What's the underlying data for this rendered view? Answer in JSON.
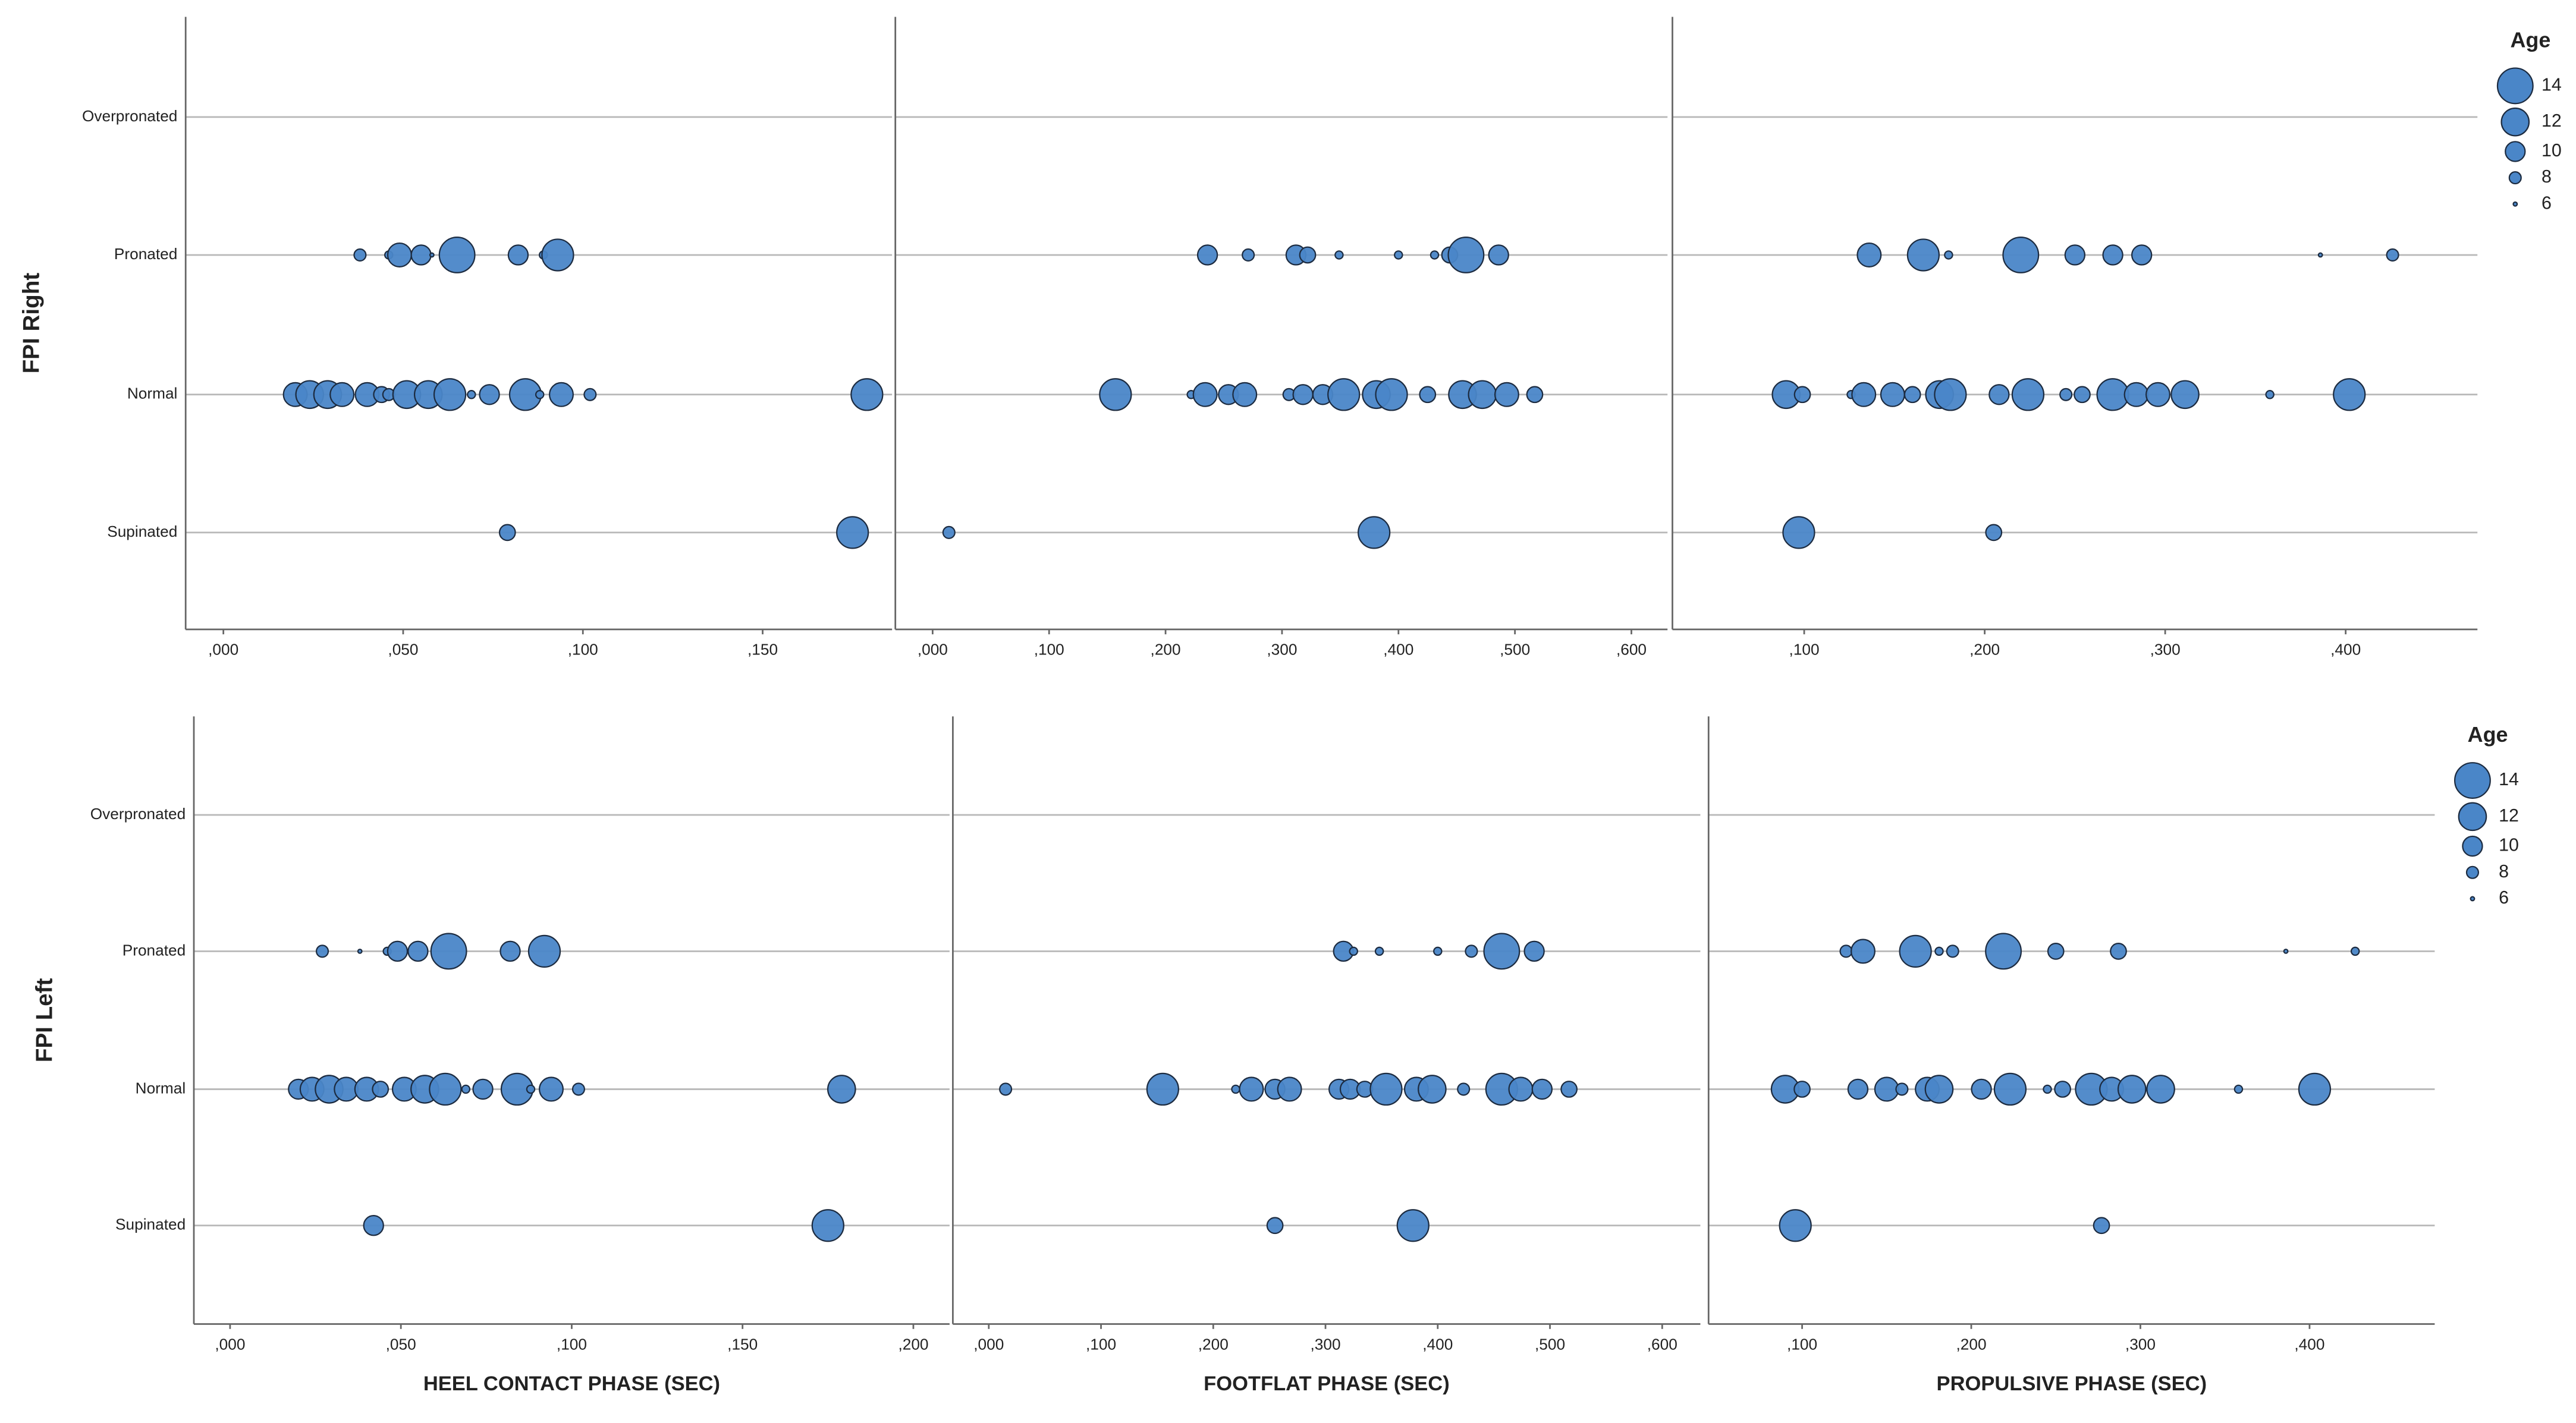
{
  "chart_data": [
    {
      "type": "bubble",
      "ylabel": "FPI Right",
      "categories": [
        "Overpronated",
        "Pronated",
        "Normal",
        "Supinated"
      ],
      "color": "#4a86c8",
      "size_legend": {
        "title": "Age",
        "values": [
          14,
          12,
          10,
          8,
          6
        ]
      },
      "panels": [
        {
          "xlim": [
            -0.0105,
            0.186
          ],
          "xticks": [
            {
              "value": 0,
              "label": ",000"
            },
            {
              "value": 0.05,
              "label": ",050"
            },
            {
              "value": 0.1,
              "label": ",100"
            },
            {
              "value": 0.15,
              "label": ",150"
            }
          ],
          "x": [
            [],
            [
              0.038,
              0.046,
              0.049,
              0.055,
              0.058,
              0.065,
              0.082,
              0.089,
              0.093
            ],
            [
              0.02,
              0.024,
              0.029,
              0.033,
              0.04,
              0.044,
              0.046,
              0.051,
              0.057,
              0.063,
              0.069,
              0.074,
              0.084,
              0.088,
              0.094,
              0.102,
              0.179
            ],
            [
              0.079,
              0.175
            ]
          ],
          "sizes": [
            [],
            [
              8,
              7,
              11,
              10,
              6,
              14,
              10,
              7,
              13
            ],
            [
              11,
              12,
              12,
              11,
              11,
              9,
              8,
              12,
              12,
              13,
              7,
              10,
              13,
              7,
              11,
              8,
              13
            ],
            [
              9,
              13
            ]
          ]
        },
        {
          "xlim": [
            -0.032,
            0.631
          ],
          "xticks": [
            {
              "value": 0,
              "label": ",000"
            },
            {
              "value": 0.1,
              "label": ",100"
            },
            {
              "value": 0.2,
              "label": ",200"
            },
            {
              "value": 0.3,
              "label": ",300"
            },
            {
              "value": 0.4,
              "label": ",400"
            },
            {
              "value": 0.5,
              "label": ",500"
            },
            {
              "value": 0.6,
              "label": ",600"
            }
          ],
          "x": [
            [],
            [
              0.236,
              0.271,
              0.312,
              0.322,
              0.349,
              0.4,
              0.431,
              0.444,
              0.458,
              0.486
            ],
            [
              0.157,
              0.222,
              0.234,
              0.254,
              0.268,
              0.306,
              0.318,
              0.335,
              0.353,
              0.381,
              0.394,
              0.425,
              0.455,
              0.472,
              0.493,
              0.517
            ],
            [
              0.014,
              0.379
            ]
          ],
          "sizes": [
            [],
            [
              10,
              8,
              10,
              9,
              7,
              7,
              7,
              9,
              14,
              10
            ],
            [
              13,
              7,
              11,
              10,
              11,
              8,
              10,
              10,
              13,
              12,
              13,
              9,
              12,
              12,
              11,
              9
            ],
            [
              8,
              13
            ]
          ]
        },
        {
          "xlim": [
            0.027,
            0.473
          ],
          "xticks": [
            {
              "value": 0.1,
              "label": ",100"
            },
            {
              "value": 0.2,
              "label": ",200"
            },
            {
              "value": 0.3,
              "label": ",300"
            },
            {
              "value": 0.4,
              "label": ",400"
            }
          ],
          "x": [
            [],
            [
              0.136,
              0.166,
              0.18,
              0.22,
              0.25,
              0.271,
              0.287,
              0.386,
              0.426
            ],
            [
              0.09,
              0.099,
              0.126,
              0.133,
              0.149,
              0.16,
              0.175,
              0.181,
              0.208,
              0.224,
              0.245,
              0.254,
              0.271,
              0.284,
              0.296,
              0.311,
              0.358,
              0.402
            ],
            [
              0.097,
              0.205
            ]
          ],
          "sizes": [
            [],
            [
              11,
              13,
              7,
              14,
              10,
              10,
              10,
              6,
              8
            ],
            [
              12,
              9,
              7,
              11,
              11,
              9,
              12,
              13,
              10,
              13,
              8,
              9,
              13,
              11,
              11,
              12,
              7,
              13
            ],
            [
              13,
              9
            ]
          ]
        }
      ]
    },
    {
      "type": "bubble",
      "ylabel": "FPI Left",
      "categories": [
        "Overpronated",
        "Pronated",
        "Normal",
        "Supinated"
      ],
      "color": "#4a86c8",
      "size_legend": {
        "title": "Age",
        "values": [
          14,
          12,
          10,
          8,
          6
        ]
      },
      "panels": [
        {
          "xlabel": "HEEL CONTACT PHASE (SEC)",
          "xlim": [
            -0.0106,
            0.2106
          ],
          "xticks": [
            {
              "value": 0,
              "label": ",000"
            },
            {
              "value": 0.05,
              "label": ",050"
            },
            {
              "value": 0.1,
              "label": ",100"
            },
            {
              "value": 0.15,
              "label": ",150"
            },
            {
              "value": 0.2,
              "label": ",200"
            }
          ],
          "x": [
            [],
            [
              0.027,
              0.038,
              0.046,
              0.049,
              0.055,
              0.064,
              0.082,
              0.092
            ],
            [
              0.02,
              0.024,
              0.029,
              0.034,
              0.04,
              0.044,
              0.051,
              0.057,
              0.063,
              0.069,
              0.074,
              0.084,
              0.088,
              0.094,
              0.102,
              0.179
            ],
            [
              0.042,
              0.175
            ]
          ],
          "sizes": [
            [],
            [
              8,
              6,
              7,
              10,
              10,
              14,
              10,
              13
            ],
            [
              10,
              11,
              12,
              11,
              11,
              9,
              11,
              12,
              13,
              7,
              10,
              13,
              7,
              11,
              8,
              12
            ],
            [
              10,
              13
            ]
          ]
        },
        {
          "xlabel": "FOOTFLAT PHASE (SEC)",
          "xlim": [
            -0.032,
            0.634
          ],
          "xticks": [
            {
              "value": 0,
              "label": ",000"
            },
            {
              "value": 0.1,
              "label": ",100"
            },
            {
              "value": 0.2,
              "label": ",200"
            },
            {
              "value": 0.3,
              "label": ",300"
            },
            {
              "value": 0.4,
              "label": ",400"
            },
            {
              "value": 0.5,
              "label": ",500"
            },
            {
              "value": 0.6,
              "label": ",600"
            }
          ],
          "x": [
            [],
            [
              0.316,
              0.325,
              0.348,
              0.4,
              0.43,
              0.457,
              0.486
            ],
            [
              0.015,
              0.155,
              0.22,
              0.234,
              0.255,
              0.268,
              0.312,
              0.322,
              0.335,
              0.354,
              0.381,
              0.395,
              0.423,
              0.457,
              0.474,
              0.493,
              0.517
            ],
            [
              0.255,
              0.378
            ]
          ],
          "sizes": [
            [],
            [
              10,
              7,
              7,
              7,
              8,
              14,
              10
            ],
            [
              8,
              13,
              7,
              11,
              10,
              11,
              10,
              10,
              9,
              13,
              11,
              12,
              8,
              13,
              11,
              10,
              9
            ],
            [
              9,
              13
            ]
          ]
        },
        {
          "xlabel": "PROPULSIVE PHASE (SEC)",
          "xlim": [
            0.0447,
            0.474
          ],
          "xticks": [
            {
              "value": 0.1,
              "label": ",100"
            },
            {
              "value": 0.2,
              "label": ",200"
            },
            {
              "value": 0.3,
              "label": ",300"
            },
            {
              "value": 0.4,
              "label": ",400"
            }
          ],
          "x": [
            [],
            [
              0.126,
              0.136,
              0.167,
              0.181,
              0.189,
              0.219,
              0.25,
              0.287,
              0.386,
              0.427
            ],
            [
              0.09,
              0.1,
              0.133,
              0.15,
              0.159,
              0.174,
              0.181,
              0.206,
              0.223,
              0.245,
              0.254,
              0.271,
              0.283,
              0.295,
              0.312,
              0.358,
              0.403
            ],
            [
              0.096,
              0.277
            ]
          ],
          "sizes": [
            [],
            [
              8,
              11,
              13,
              7,
              8,
              14,
              9,
              9,
              6,
              7
            ],
            [
              12,
              9,
              10,
              11,
              8,
              11,
              12,
              10,
              13,
              7,
              9,
              13,
              11,
              12,
              12,
              7,
              13
            ],
            [
              13,
              9
            ]
          ]
        }
      ]
    }
  ]
}
